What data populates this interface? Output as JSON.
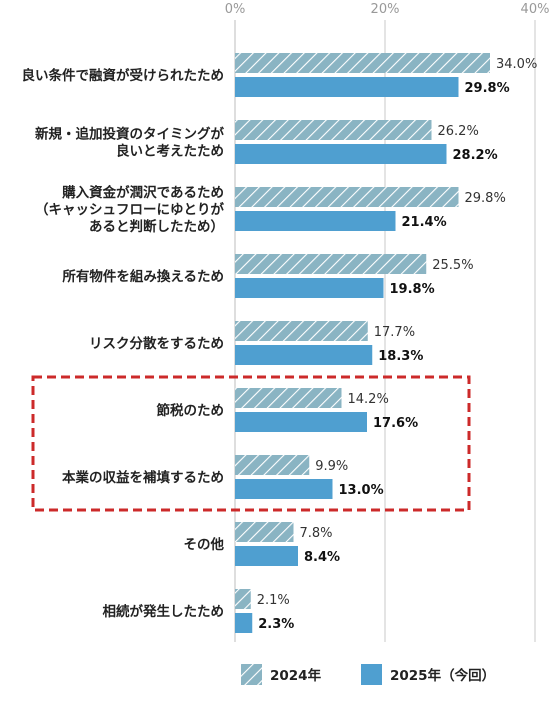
{
  "chart_data": {
    "type": "bar",
    "orientation": "horizontal",
    "xlim": [
      0,
      40
    ],
    "tick_labels": [
      "0%",
      "20%",
      "40%"
    ],
    "tick_values": [
      0,
      20,
      40
    ],
    "categories": [
      [
        "良い条件で融資が受けられたため"
      ],
      [
        "新規・追加投資のタイミングが",
        "良いと考えたため"
      ],
      [
        "購入資金が潤沢であるため",
        "（キャッシュフローにゆとりが",
        "あると判断したため）"
      ],
      [
        "所有物件を組み換えるため"
      ],
      [
        "リスク分散をするため"
      ],
      [
        "節税のため"
      ],
      [
        "本業の収益を補填するため"
      ],
      [
        "その他"
      ],
      [
        "相続が発生したため"
      ]
    ],
    "series": [
      {
        "name": "2024年",
        "values": [
          34.0,
          26.2,
          29.8,
          25.5,
          17.7,
          14.2,
          9.9,
          7.8,
          2.1
        ],
        "labels": [
          "34.0%",
          "26.2%",
          "29.8%",
          "25.5%",
          "17.7%",
          "14.2%",
          "9.9%",
          "7.8%",
          "2.1%"
        ],
        "color": "#8ab4c3",
        "pattern": "diagonal-hatch"
      },
      {
        "name": "2025年（今回）",
        "values": [
          29.8,
          28.2,
          21.4,
          19.8,
          18.3,
          17.6,
          13.0,
          8.4,
          2.3
        ],
        "labels": [
          "29.8%",
          "28.2%",
          "21.4%",
          "19.8%",
          "18.3%",
          "17.6%",
          "13.0%",
          "8.4%",
          "2.3%"
        ],
        "color": "#4f9fd0",
        "pattern": "solid"
      }
    ],
    "highlight": {
      "categories": [
        "節税のため",
        "本業の収益を補填するため"
      ],
      "style": "red-dashed-box",
      "color": "#cc2a2a"
    },
    "grid": true,
    "legend": "bottom"
  }
}
